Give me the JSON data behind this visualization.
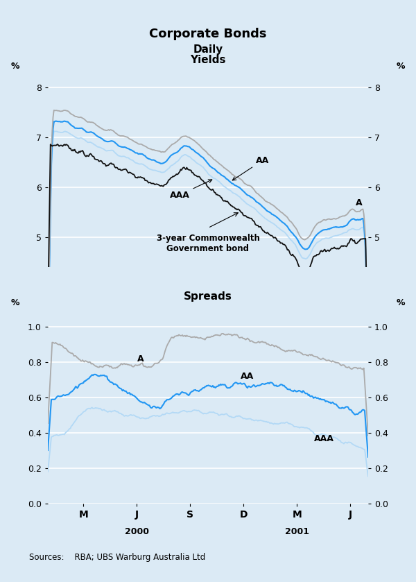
{
  "title": "Corporate Bonds",
  "subtitle": "Daily",
  "background_color": "#dbeaf5",
  "yields_label": "Yields",
  "spreads_label": "Spreads",
  "ylabel_pct": "%",
  "yields_ylim": [
    4.4,
    8.3
  ],
  "yields_yticks": [
    5,
    6,
    7,
    8
  ],
  "spreads_ylim": [
    0.0,
    1.1
  ],
  "spreads_yticks": [
    0.0,
    0.2,
    0.4,
    0.6,
    0.8,
    1.0
  ],
  "xtick_labels": [
    "M",
    "J",
    "S",
    "D",
    "M",
    "J"
  ],
  "source_text": "Sources:    RBA; UBS Warburg Australia Ltd",
  "colors": {
    "A_gray": "#aaaaaa",
    "AA_blue": "#2196f3",
    "AAA_light_blue": "#b3d9f5",
    "gov_bond_black": "#111111"
  },
  "n_points": 370
}
